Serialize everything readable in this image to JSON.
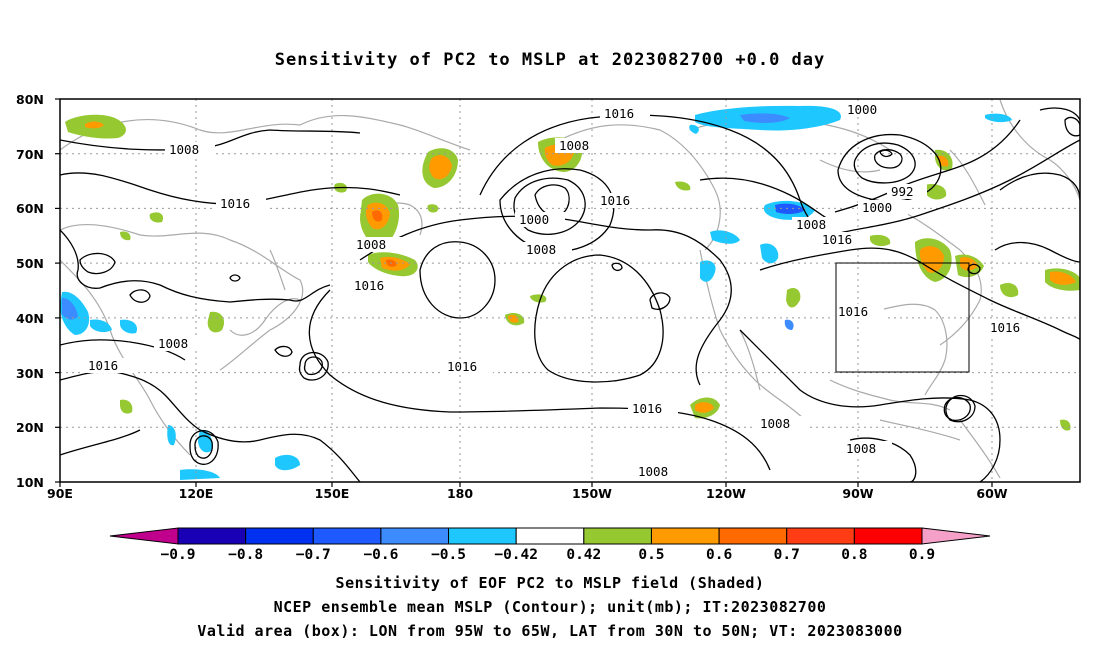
{
  "title": "Sensitivity of PC2 to MSLP at 2023082700 +0.0 day",
  "lat_labels": [
    "80N",
    "70N",
    "60N",
    "50N",
    "40N",
    "30N",
    "20N",
    "10N"
  ],
  "lon_labels": [
    "90E",
    "120E",
    "150E",
    "180",
    "150W",
    "120W",
    "90W",
    "60W"
  ],
  "contour_labels": [
    {
      "text": "1016"
    },
    {
      "text": "1008"
    },
    {
      "text": "1016"
    },
    {
      "text": "1008"
    },
    {
      "text": "1016"
    },
    {
      "text": "1008"
    },
    {
      "text": "1016"
    },
    {
      "text": "1008"
    },
    {
      "text": "1000"
    },
    {
      "text": "1016"
    },
    {
      "text": "1008"
    },
    {
      "text": "1016"
    },
    {
      "text": "1016"
    },
    {
      "text": "1000"
    },
    {
      "text": "992"
    },
    {
      "text": "1000"
    },
    {
      "text": "1008"
    },
    {
      "text": "1016"
    },
    {
      "text": "1016"
    },
    {
      "text": "1016"
    },
    {
      "text": "1008"
    },
    {
      "text": "1008"
    },
    {
      "text": "1008"
    }
  ],
  "colorbar": {
    "colors": [
      "#c0008c",
      "#1a00b4",
      "#0030f0",
      "#1e5aff",
      "#3c8cff",
      "#1ec8ff",
      "#ffffff",
      "#96c832",
      "#ff9b00",
      "#ff6a00",
      "#ff3c14",
      "#ff0000",
      "#f5a0c8"
    ],
    "labels": [
      "-0.9",
      "-0.8",
      "-0.7",
      "-0.6",
      "-0.5",
      "-0.42",
      "0.42",
      "0.5",
      "0.6",
      "0.7",
      "0.8",
      "0.9"
    ]
  },
  "caption": {
    "line1": "Sensitivity of EOF PC2 to MSLP field (Shaded)",
    "line2": "NCEP ensemble mean MSLP (Contour); unit(mb); IT:2023082700",
    "line3": "Valid area (box): LON from 95W to 65W, LAT from 30N to 50N; VT: 2023083000"
  },
  "valid_box": {
    "lon_from": "95W",
    "lon_to": "65W",
    "lat_from": "30N",
    "lat_to": "50N"
  }
}
